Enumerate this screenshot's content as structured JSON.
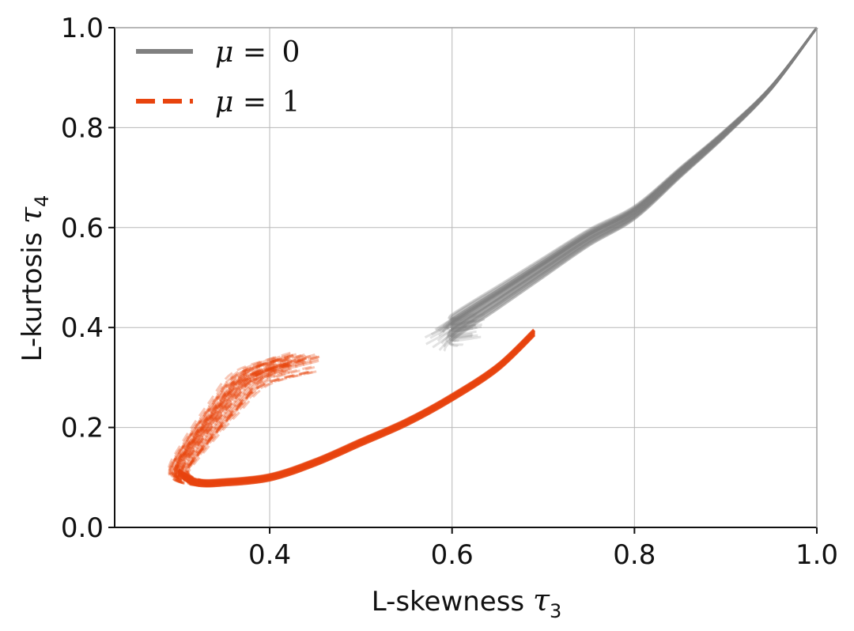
{
  "chart_data": {
    "type": "line",
    "xlabel": {
      "text": "L-skewness ",
      "sym": "τ",
      "sub": "3"
    },
    "ylabel": {
      "text": "L-kurtosis ",
      "sym": "τ",
      "sub": "4"
    },
    "xlim": [
      0.23,
      1.0
    ],
    "ylim": [
      0.0,
      1.0
    ],
    "xticks": [
      0.4,
      0.6,
      0.8,
      1.0
    ],
    "xtick_labels": [
      "0.4",
      "0.6",
      "0.8",
      "1.0"
    ],
    "yticks": [
      0.0,
      0.2,
      0.4,
      0.6,
      0.8,
      1.0
    ],
    "ytick_labels": [
      "0.0",
      "0.2",
      "0.4",
      "0.6",
      "0.8",
      "1.0"
    ],
    "grid": true,
    "legend_position": "top-left",
    "colors": {
      "mu0": "#808080",
      "mu1": "#e8440e"
    },
    "series": [
      {
        "name": "μ = 0",
        "legend": {
          "sym": "μ",
          "eq": " = ",
          "val": "0"
        },
        "style": "solid",
        "color": "#808080",
        "curve_count": 60,
        "x": [
          0.57,
          0.6,
          0.65,
          0.7,
          0.75,
          0.8,
          0.85,
          0.9,
          0.95,
          1.0
        ],
        "y": [
          0.37,
          0.4,
          0.46,
          0.52,
          0.58,
          0.63,
          0.71,
          0.79,
          0.88,
          1.0
        ]
      },
      {
        "name": "μ = 1",
        "legend": {
          "sym": "μ",
          "eq": " = ",
          "val": "1"
        },
        "style": "dashed",
        "color": "#e8440e",
        "curve_count": 60,
        "x": [
          0.43,
          0.38,
          0.35,
          0.32,
          0.3,
          0.32,
          0.35,
          0.4,
          0.45,
          0.5,
          0.55,
          0.6,
          0.65,
          0.69
        ],
        "y": [
          0.33,
          0.3,
          0.24,
          0.17,
          0.11,
          0.09,
          0.09,
          0.1,
          0.13,
          0.17,
          0.21,
          0.26,
          0.32,
          0.39
        ]
      }
    ]
  }
}
